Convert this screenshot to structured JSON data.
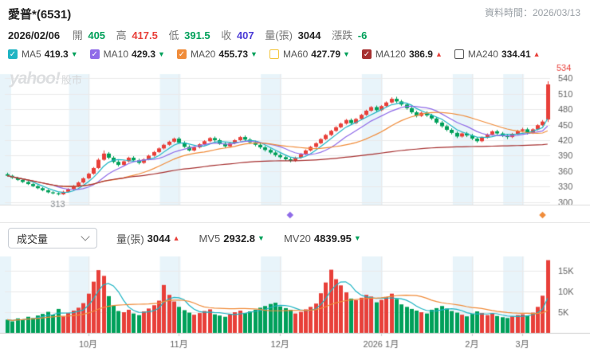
{
  "header": {
    "title": "愛普*(6531)",
    "data_time": "資料時間：2026/03/13",
    "quote": {
      "date": "2026/02/06",
      "open_label": "開",
      "open": "405",
      "high_label": "高",
      "high": "417.5",
      "low_label": "低",
      "low": "391.5",
      "close_label": "收",
      "close": "407",
      "volume_label": "量(張)",
      "volume": "3044",
      "change_label": "漲跌",
      "change": "-6"
    }
  },
  "watermark": {
    "brand": "yahoo!",
    "suffix": "股市"
  },
  "ma_legend": [
    {
      "name": "MA5",
      "value": "419.3",
      "dir": "down",
      "color": "#1fb4c3",
      "checked": true
    },
    {
      "name": "MA10",
      "value": "429.3",
      "dir": "down",
      "color": "#8f6be8",
      "checked": true
    },
    {
      "name": "MA20",
      "value": "455.73",
      "dir": "down",
      "color": "#f08c3a",
      "checked": true
    },
    {
      "name": "MA60",
      "value": "427.79",
      "dir": "down",
      "color": "#f3c53d",
      "checked": false
    },
    {
      "name": "MA120",
      "value": "386.9",
      "dir": "up",
      "color": "#a63030",
      "checked": true
    },
    {
      "name": "MA240",
      "value": "334.41",
      "dir": "up",
      "color": "#555555",
      "checked": false
    }
  ],
  "volume_panel": {
    "dropdown": "成交量",
    "vol_label": "量(張)",
    "vol_value": "3044",
    "vol_dir": "up",
    "mv5_label": "MV5",
    "mv5_value": "2932.8",
    "mv5_dir": "down",
    "mv20_label": "MV20",
    "mv20_value": "4839.95",
    "mv20_dir": "down"
  },
  "chart_data": {
    "type": "candlestick",
    "title": "愛普*(6531) 日K線圖",
    "up_color": "#e8403a",
    "down_color": "#00a05a",
    "grid_color": "#eaeaea",
    "band_color": "rgba(140,200,230,0.20)",
    "y_ticks": [
      540,
      510,
      480,
      450,
      420,
      390,
      360,
      330,
      300
    ],
    "y_range": [
      295,
      548
    ],
    "x_ticks": [
      {
        "label": "10月",
        "index": 16
      },
      {
        "label": "11月",
        "index": 34
      },
      {
        "label": "12月",
        "index": 54
      },
      {
        "label": "2026 1月",
        "index": 74
      },
      {
        "label": "2月",
        "index": 92
      },
      {
        "label": "3月",
        "index": 102
      }
    ],
    "high_label": {
      "text": "534",
      "price": 534
    },
    "low_label": {
      "text": "313",
      "index": 10,
      "price": 313
    },
    "ma_series": [
      {
        "name": "MA5",
        "window": 5,
        "color": "#1fb4c3"
      },
      {
        "name": "MA10",
        "window": 10,
        "color": "#8f6be8"
      },
      {
        "name": "MA20",
        "window": 20,
        "color": "#f08c3a"
      },
      {
        "name": "MA120",
        "window": 120,
        "color": "#a63030"
      }
    ],
    "mv_series": [
      {
        "name": "MV5",
        "window": 5,
        "color": "#1fb4c3"
      },
      {
        "name": "MV20",
        "window": 20,
        "color": "#f08c3a"
      }
    ],
    "volume_ticks": [
      {
        "label": "15K",
        "value": 15000
      },
      {
        "label": "10K",
        "value": 10000
      },
      {
        "label": "5K",
        "value": 5000
      }
    ],
    "volume_max": 18500,
    "event_markers": [
      {
        "index": 56,
        "color": "#8f6be8"
      },
      {
        "index": 106,
        "color": "#f08c3a"
      }
    ],
    "candle_format": [
      "open",
      "high",
      "low",
      "close",
      "volume"
    ],
    "candles": [
      [
        354,
        357,
        349,
        351,
        3200
      ],
      [
        351,
        353,
        345,
        347,
        2800
      ],
      [
        347,
        349,
        341,
        343,
        3500
      ],
      [
        343,
        345,
        337,
        339,
        3300
      ],
      [
        339,
        341,
        333,
        335,
        3900
      ],
      [
        335,
        337,
        329,
        331,
        3600
      ],
      [
        331,
        333,
        325,
        327,
        4200
      ],
      [
        327,
        329,
        321,
        323,
        4600
      ],
      [
        323,
        325,
        317,
        319,
        5100
      ],
      [
        319,
        321,
        315,
        317,
        4400
      ],
      [
        317,
        319,
        313,
        315,
        5800
      ],
      [
        315,
        322,
        314,
        320,
        4000
      ],
      [
        320,
        327,
        318,
        325,
        4800
      ],
      [
        325,
        333,
        323,
        331,
        5400
      ],
      [
        331,
        340,
        329,
        338,
        6100
      ],
      [
        338,
        348,
        336,
        346,
        7200
      ],
      [
        346,
        357,
        344,
        355,
        9500
      ],
      [
        355,
        368,
        353,
        366,
        12400
      ],
      [
        366,
        385,
        364,
        382,
        15200
      ],
      [
        382,
        400,
        380,
        394,
        13800
      ],
      [
        394,
        397,
        383,
        386,
        8900
      ],
      [
        386,
        389,
        375,
        378,
        6600
      ],
      [
        378,
        381,
        369,
        372,
        5300
      ],
      [
        372,
        381,
        370,
        379,
        5000
      ],
      [
        379,
        388,
        377,
        386,
        5600
      ],
      [
        386,
        389,
        378,
        381,
        4700
      ],
      [
        381,
        384,
        373,
        376,
        4300
      ],
      [
        376,
        385,
        374,
        383,
        5200
      ],
      [
        383,
        392,
        381,
        390,
        5900
      ],
      [
        390,
        399,
        388,
        397,
        6700
      ],
      [
        397,
        406,
        395,
        404,
        7800
      ],
      [
        404,
        413,
        402,
        411,
        11600
      ],
      [
        411,
        419,
        409,
        417,
        9200
      ],
      [
        417,
        425,
        415,
        423,
        7600
      ],
      [
        423,
        426,
        413,
        415,
        6300
      ],
      [
        415,
        418,
        405,
        407,
        5500
      ],
      [
        407,
        410,
        398,
        400,
        4900
      ],
      [
        400,
        408,
        398,
        406,
        4400
      ],
      [
        406,
        414,
        404,
        412,
        4800
      ],
      [
        412,
        420,
        410,
        418,
        5300
      ],
      [
        418,
        426,
        416,
        424,
        5700
      ],
      [
        424,
        427,
        417,
        420,
        4500
      ],
      [
        420,
        423,
        411,
        413,
        4200
      ],
      [
        413,
        416,
        405,
        408,
        3900
      ],
      [
        408,
        416,
        406,
        414,
        4500
      ],
      [
        414,
        422,
        412,
        420,
        5000
      ],
      [
        420,
        428,
        418,
        426,
        5400
      ],
      [
        426,
        429,
        418,
        421,
        4800
      ],
      [
        421,
        424,
        413,
        416,
        5200
      ],
      [
        416,
        419,
        408,
        411,
        5600
      ],
      [
        411,
        414,
        403,
        406,
        6100
      ],
      [
        406,
        409,
        398,
        401,
        6500
      ],
      [
        401,
        404,
        393,
        396,
        7000
      ],
      [
        396,
        399,
        388,
        391,
        7300
      ],
      [
        391,
        394,
        384,
        387,
        6400
      ],
      [
        387,
        390,
        380,
        383,
        6000
      ],
      [
        383,
        386,
        377,
        380,
        5600
      ],
      [
        380,
        388,
        378,
        386,
        4700
      ],
      [
        386,
        395,
        384,
        393,
        5100
      ],
      [
        393,
        402,
        391,
        400,
        5700
      ],
      [
        400,
        409,
        398,
        407,
        6300
      ],
      [
        407,
        416,
        405,
        414,
        7100
      ],
      [
        414,
        424,
        412,
        422,
        9600
      ],
      [
        422,
        432,
        420,
        430,
        12200
      ],
      [
        430,
        440,
        428,
        438,
        15300
      ],
      [
        438,
        447,
        436,
        445,
        13000
      ],
      [
        445,
        454,
        443,
        452,
        11500
      ],
      [
        452,
        461,
        450,
        459,
        9800
      ],
      [
        459,
        462,
        450,
        453,
        8300
      ],
      [
        453,
        463,
        451,
        461,
        7900
      ],
      [
        461,
        471,
        459,
        469,
        8500
      ],
      [
        469,
        479,
        467,
        477,
        9200
      ],
      [
        477,
        486,
        475,
        484,
        8800
      ],
      [
        484,
        487,
        475,
        478,
        7400
      ],
      [
        478,
        488,
        476,
        486,
        8000
      ],
      [
        486,
        495,
        484,
        493,
        8700
      ],
      [
        493,
        503,
        491,
        500,
        9500
      ],
      [
        500,
        504,
        492,
        495,
        8200
      ],
      [
        495,
        498,
        486,
        489,
        6900
      ],
      [
        489,
        492,
        479,
        482,
        6300
      ],
      [
        482,
        485,
        471,
        474,
        5800
      ],
      [
        474,
        477,
        464,
        467,
        5400
      ],
      [
        467,
        475,
        465,
        473,
        5000
      ],
      [
        473,
        476,
        465,
        468,
        4700
      ],
      [
        468,
        471,
        459,
        462,
        5600
      ],
      [
        462,
        465,
        451,
        454,
        6000
      ],
      [
        454,
        457,
        444,
        447,
        6500
      ],
      [
        447,
        450,
        437,
        440,
        5900
      ],
      [
        440,
        443,
        431,
        434,
        5300
      ],
      [
        434,
        437,
        424,
        427,
        4900
      ],
      [
        427,
        435,
        425,
        433,
        4400
      ],
      [
        433,
        436,
        426,
        429,
        4000
      ],
      [
        429,
        432,
        420,
        423,
        4600
      ],
      [
        423,
        426,
        415,
        418,
        5200
      ],
      [
        418,
        427,
        416,
        425,
        4800
      ],
      [
        425,
        433,
        423,
        431,
        4300
      ],
      [
        431,
        439,
        429,
        437,
        4700
      ],
      [
        437,
        440,
        430,
        433,
        4100
      ],
      [
        433,
        436,
        426,
        429,
        3800
      ],
      [
        429,
        432,
        422,
        426,
        3600
      ],
      [
        426,
        434,
        424,
        432,
        4000
      ],
      [
        432,
        440,
        430,
        438,
        4300
      ],
      [
        438,
        444,
        435,
        441,
        4500
      ],
      [
        441,
        444,
        431,
        434,
        4200
      ],
      [
        434,
        443,
        432,
        441,
        4900
      ],
      [
        441,
        451,
        439,
        449,
        6300
      ],
      [
        449,
        459,
        447,
        456,
        9000
      ],
      [
        460,
        534,
        455,
        528,
        17600
      ]
    ]
  }
}
